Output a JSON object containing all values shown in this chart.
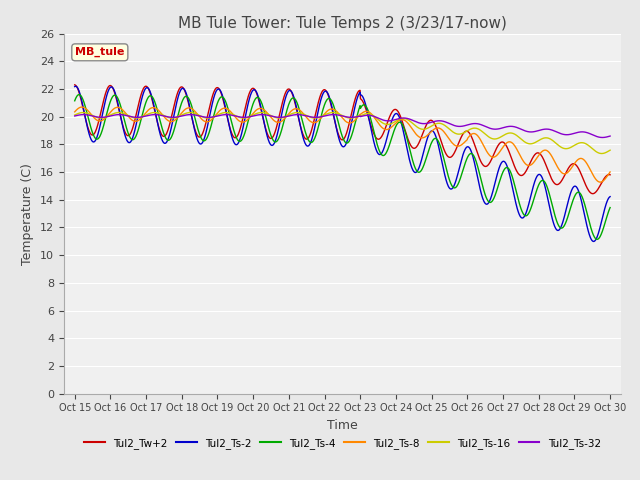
{
  "title": "MB Tule Tower: Tule Temps 2 (3/23/17-now)",
  "xlabel": "Time",
  "ylabel": "Temperature (C)",
  "ylim": [
    0,
    26
  ],
  "yticks": [
    0,
    2,
    4,
    6,
    8,
    10,
    12,
    14,
    16,
    18,
    20,
    22,
    24,
    26
  ],
  "xtick_labels": [
    "Oct 15",
    "Oct 16",
    "Oct 17",
    "Oct 18",
    "Oct 19",
    "Oct 20",
    "Oct 21",
    "Oct 22",
    "Oct 23",
    "Oct 24",
    "Oct 25",
    "Oct 26",
    "Oct 27",
    "Oct 28",
    "Oct 29",
    "Oct 30"
  ],
  "series_colors": [
    "#cc0000",
    "#0000cc",
    "#00aa00",
    "#ff8800",
    "#cccc00",
    "#8800cc"
  ],
  "series_names": [
    "Tul2_Tw+2",
    "Tul2_Ts-2",
    "Tul2_Ts-4",
    "Tul2_Ts-8",
    "Tul2_Ts-16",
    "Tul2_Ts-32"
  ],
  "bg_color": "#e8e8e8",
  "plot_bg_color": "#f0f0f0",
  "grid_color": "#ffffff",
  "annotation_box": "MB_tule",
  "annotation_color": "#cc0000",
  "title_fontsize": 11,
  "axis_fontsize": 9,
  "tick_fontsize": 8
}
